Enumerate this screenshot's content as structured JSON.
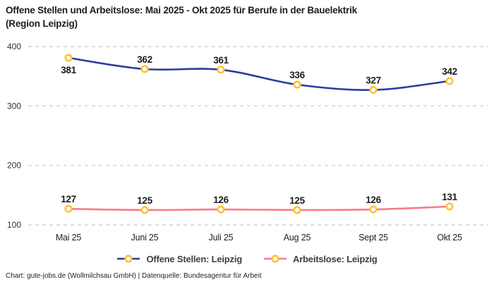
{
  "title": "Offene Stellen und Arbeitslose: Mai 2025 - Okt 2025 für Berufe in der Bauelektrik\n(Region Leipzig)",
  "footer": "Chart: gute-jobs.de (Wollmilchsau GmbH) | Datenquelle: Bundesagentur für Arbeit",
  "chart_data": {
    "type": "line",
    "title": "Offene Stellen und Arbeitslose: Mai 2025 - Okt 2025 für Berufe in der Bauelektrik (Region Leipzig)",
    "categories": [
      "Mai 25",
      "Juni 25",
      "Juli 25",
      "Aug 25",
      "Sept 25",
      "Okt 25"
    ],
    "series": [
      {
        "name": "Offene Stellen: Leipzig",
        "values": [
          381,
          362,
          361,
          336,
          327,
          342
        ],
        "color": "#2B3C9E",
        "label_positions": [
          "below",
          "above",
          "above",
          "above",
          "above",
          "above"
        ]
      },
      {
        "name": "Arbeitslose: Leipzig",
        "values": [
          127,
          125,
          126,
          125,
          126,
          131
        ],
        "color": "#F97B87",
        "label_positions": [
          "above",
          "above",
          "above",
          "above",
          "above",
          "above"
        ]
      }
    ],
    "marker": {
      "fill": "#FFFFFF",
      "stroke": "#FFC234"
    },
    "y_axis": {
      "ticks": [
        100,
        200,
        300,
        400
      ],
      "range": [
        100,
        400
      ]
    },
    "x_axis_label_color": "#222222",
    "tick_label_color": "#333333",
    "data_label_color": "#1d1d1d",
    "grid": {
      "style": "dashed",
      "color": "#CBCBCB"
    },
    "legend_position": "bottom",
    "smooth": true
  }
}
